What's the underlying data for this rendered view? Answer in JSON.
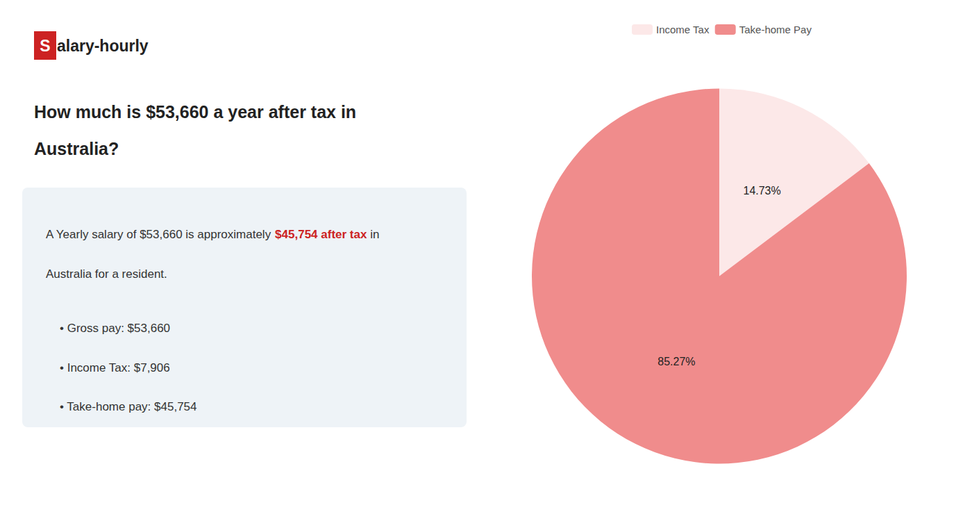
{
  "chart_data": {
    "type": "pie",
    "categories": [
      "Income Tax",
      "Take-home Pay"
    ],
    "values": [
      14.73,
      85.27
    ],
    "value_labels": [
      "14.73%",
      "85.27%"
    ],
    "colors": [
      "#fce8e8",
      "#f08c8c"
    ],
    "data_labels": true,
    "legend": "top",
    "annotations": [
      {
        "text": "S",
        "color": "#cc2222"
      },
      {
        "text": "alary-hourly"
      },
      {
        "text": "How much is $53,660 a year after tax in"
      },
      {
        "text": "Australia?"
      },
      {
        "text": "A Yearly salary of $53,660 is approximately "
      },
      {
        "text": "$45,754 after tax",
        "color": "#cc2222"
      },
      {
        "text": " in"
      },
      {
        "text": "Australia for a resident."
      },
      {
        "text": "• Gross pay: $53,660"
      },
      {
        "text": "• Income Tax: $7,906"
      },
      {
        "text": "• Take-home pay: $45,754"
      }
    ]
  }
}
